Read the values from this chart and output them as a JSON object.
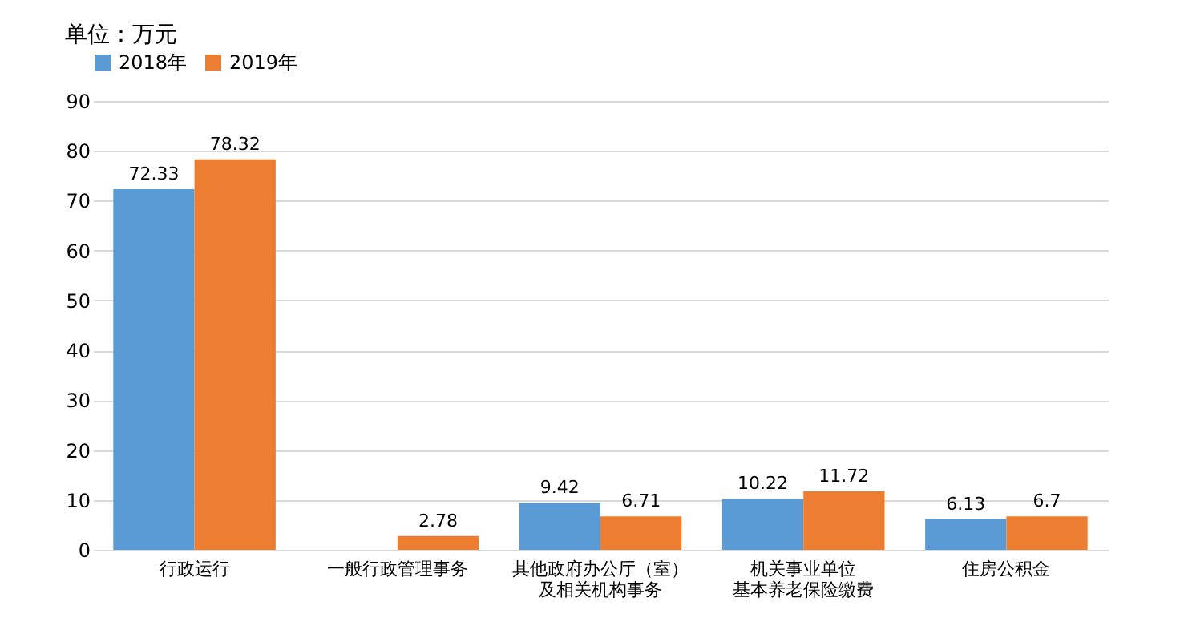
{
  "chart_data": {
    "type": "bar",
    "title": "单位：万元",
    "categories": [
      "行政运行",
      "一般行政管理事务",
      "其他政府办公厅（室）及相关机构事务",
      "机关事业单位基本养老保险缴费",
      "住房公积金"
    ],
    "series": [
      {
        "name": "2018年",
        "color": "#5b9bd5",
        "values": [
          72.33,
          null,
          9.42,
          10.22,
          6.13
        ]
      },
      {
        "name": "2019年",
        "color": "#ed7d31",
        "values": [
          78.32,
          2.78,
          6.71,
          11.72,
          6.7
        ]
      }
    ],
    "ylim": [
      0,
      90
    ],
    "yticks": [
      0,
      10,
      20,
      30,
      40,
      50,
      60,
      70,
      80,
      90
    ],
    "grid": "y",
    "legend": "top",
    "data_labels": true
  }
}
